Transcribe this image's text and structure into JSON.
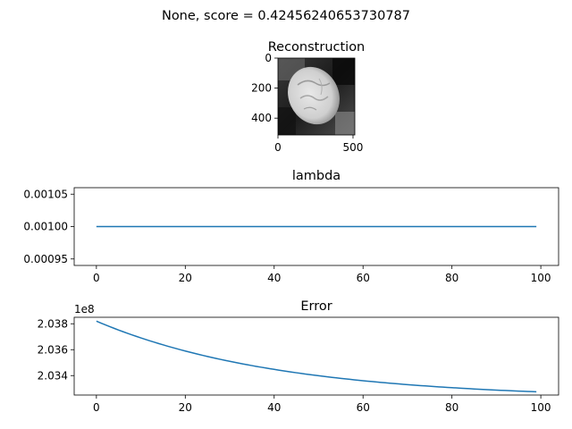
{
  "suptitle": "None, score = 0.42456240653730787",
  "chart_data": [
    {
      "type": "image",
      "title": "Reconstruction",
      "colormap": "gray",
      "xticks": [
        0,
        500
      ],
      "yticks": [
        0,
        200,
        400
      ],
      "xlim": [
        0,
        512
      ],
      "ylim": [
        512,
        0
      ]
    },
    {
      "type": "line",
      "title": "lambda",
      "x_range": [
        0,
        99
      ],
      "series": [
        {
          "values_constant": 0.001
        }
      ],
      "xlim": [
        -5,
        104
      ],
      "ylim": [
        0.00094,
        0.00106
      ],
      "xticks": [
        0,
        20,
        40,
        60,
        80,
        100
      ],
      "ytick_labels": [
        "0.00105",
        "0.00100",
        "0.00095"
      ],
      "ytick_values": [
        0.00105,
        0.001,
        0.00095
      ],
      "color": "#1f77b4"
    },
    {
      "type": "line",
      "title": "Error",
      "x_range": [
        0,
        99
      ],
      "series": [
        {
          "start": 203820000,
          "end": 203275000,
          "decay": 2.4
        }
      ],
      "xlim": [
        -5,
        104
      ],
      "ylim": [
        203250000,
        203850000
      ],
      "xticks": [
        0,
        20,
        40,
        60,
        80,
        100
      ],
      "ytick_labels": [
        "2.034",
        "2.036",
        "2.038"
      ],
      "ytick_values": [
        203400000,
        203600000,
        203800000
      ],
      "offset_label": "1e8",
      "color": "#1f77b4"
    }
  ]
}
